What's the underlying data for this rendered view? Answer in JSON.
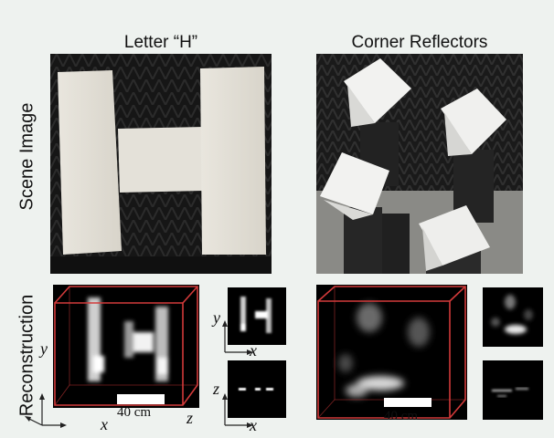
{
  "figure": {
    "columns": [
      {
        "title": "Letter “H”"
      },
      {
        "title": "Corner Reflectors"
      }
    ],
    "rows": [
      {
        "label": "Scene Image"
      },
      {
        "label": "Reconstruction"
      }
    ],
    "axes": {
      "x": "x",
      "y": "y",
      "z": "z"
    },
    "scale_bar": "40 cm",
    "colors": {
      "cube_edges": "#d23a3a",
      "panel_bg": "#000000",
      "page_bg": "#eef2ef"
    }
  }
}
